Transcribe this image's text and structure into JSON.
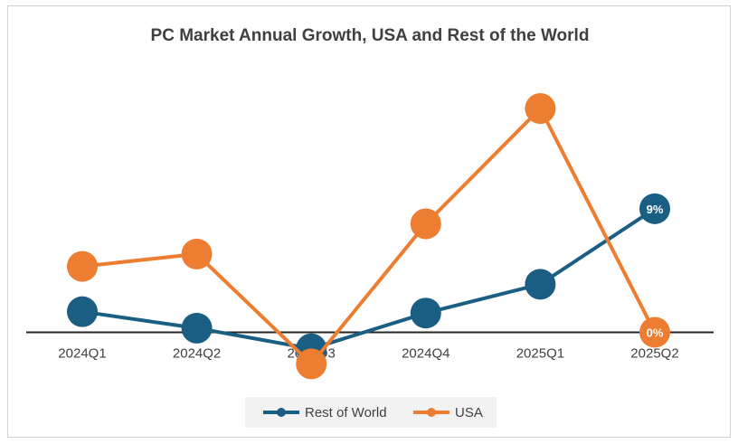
{
  "chart_data": {
    "type": "line",
    "title": "PC Market Annual Growth, USA and Rest of the World",
    "categories": [
      "2024Q1",
      "2024Q2",
      "2024Q3",
      "2024Q4",
      "2025Q1",
      "2025Q2"
    ],
    "series": [
      {
        "name": "Rest of World",
        "color": "#1b5e83",
        "values": [
          1.5,
          0.3,
          -1.2,
          1.4,
          3.5,
          9.0
        ],
        "labels": [
          "",
          "",
          "",
          "",
          "",
          "9%"
        ]
      },
      {
        "name": "USA",
        "color": "#ed7d31",
        "values": [
          4.8,
          5.7,
          -2.3,
          7.9,
          16.3,
          0.0
        ],
        "labels": [
          "",
          "",
          "",
          "",
          "",
          "0%"
        ]
      }
    ],
    "ylim": [
      -3,
      19
    ],
    "grid": false,
    "legend": "bottom"
  }
}
